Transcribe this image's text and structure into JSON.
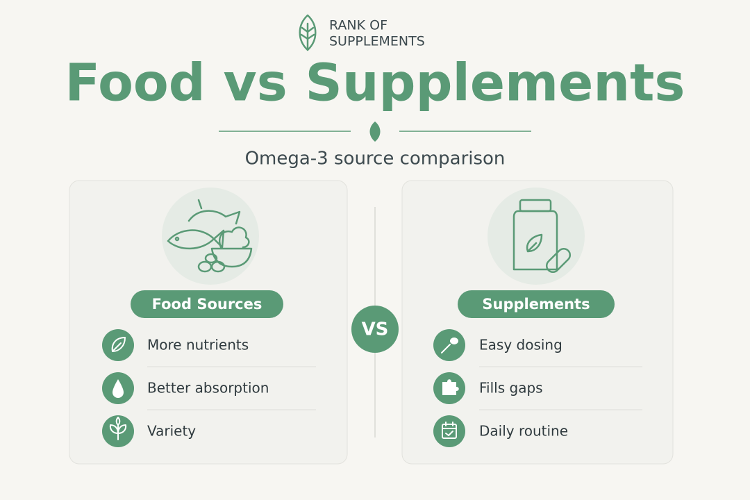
{
  "brand": {
    "line1": "RANK OF",
    "line2": "SUPPLEMENTS"
  },
  "title": "Food vs Supplements",
  "subtitle": "Omega-3 source comparison",
  "vs": "VS",
  "panels": [
    {
      "heading": "Food Sources",
      "items": [
        "More nutrients",
        "Better absorption",
        "Variety"
      ]
    },
    {
      "heading": "Supplements",
      "items": [
        "Easy dosing",
        "Fills gaps",
        "Daily routine"
      ]
    }
  ]
}
